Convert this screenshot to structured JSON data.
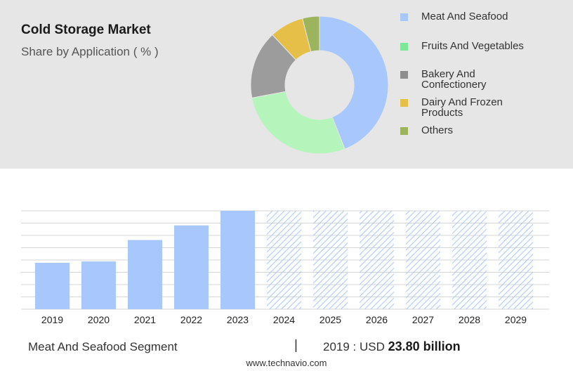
{
  "header": {
    "title": "Cold Storage Market",
    "subtitle": "Share by Application ( % )"
  },
  "colors": {
    "meat": "#a7c7fd",
    "fruits": "#b5f5bc",
    "bakery": "#9c9c9c",
    "dairy": "#e6bf49",
    "others": "#9cb55c",
    "bar": "#a7c7fd",
    "forecast_hatch": "#a7c7fd",
    "gridline": "#d6d6d6"
  },
  "legend": [
    {
      "label": "Meat And Seafood",
      "color": "#a7c7fd"
    },
    {
      "label": "Fruits And Vegetables",
      "color": "#7ee89a"
    },
    {
      "label": "Bakery And Confectionery",
      "color": "#8e8e8e"
    },
    {
      "label": "Dairy And Frozen Products",
      "color": "#e6bf49"
    },
    {
      "label": "Others",
      "color": "#9cb55c"
    }
  ],
  "chart_data": [
    {
      "type": "pie",
      "title": "Share by Application ( % )",
      "donut": true,
      "slices": [
        {
          "label": "Meat And Seafood",
          "value": 44,
          "color": "#a7c7fd"
        },
        {
          "label": "Fruits And Vegetables",
          "value": 28,
          "color": "#b5f5bc"
        },
        {
          "label": "Bakery And Confectionery",
          "value": 16,
          "color": "#9c9c9c"
        },
        {
          "label": "Dairy And Frozen Products",
          "value": 8,
          "color": "#e6bf49"
        },
        {
          "label": "Others",
          "value": 4,
          "color": "#9cb55c"
        }
      ]
    },
    {
      "type": "bar",
      "title": "Meat And Seafood Segment",
      "categories": [
        "2019",
        "2020",
        "2021",
        "2022",
        "2023",
        "2024",
        "2025",
        "2026",
        "2027",
        "2028",
        "2029"
      ],
      "values": [
        23.8,
        24.5,
        35.5,
        43.0,
        50.5,
        50.5,
        50.5,
        50.5,
        50.5,
        50.5,
        50.5
      ],
      "forecast": [
        false,
        false,
        false,
        false,
        false,
        true,
        true,
        true,
        true,
        true,
        true
      ],
      "ylim": [
        0,
        50.5
      ],
      "grid": true,
      "unit": "USD billion"
    }
  ],
  "footer": {
    "segment": "Meat And Seafood Segment",
    "separator": "|",
    "value_prefix": "2019 : USD ",
    "value": "23.80 billion",
    "url": "www.technavio.com"
  }
}
